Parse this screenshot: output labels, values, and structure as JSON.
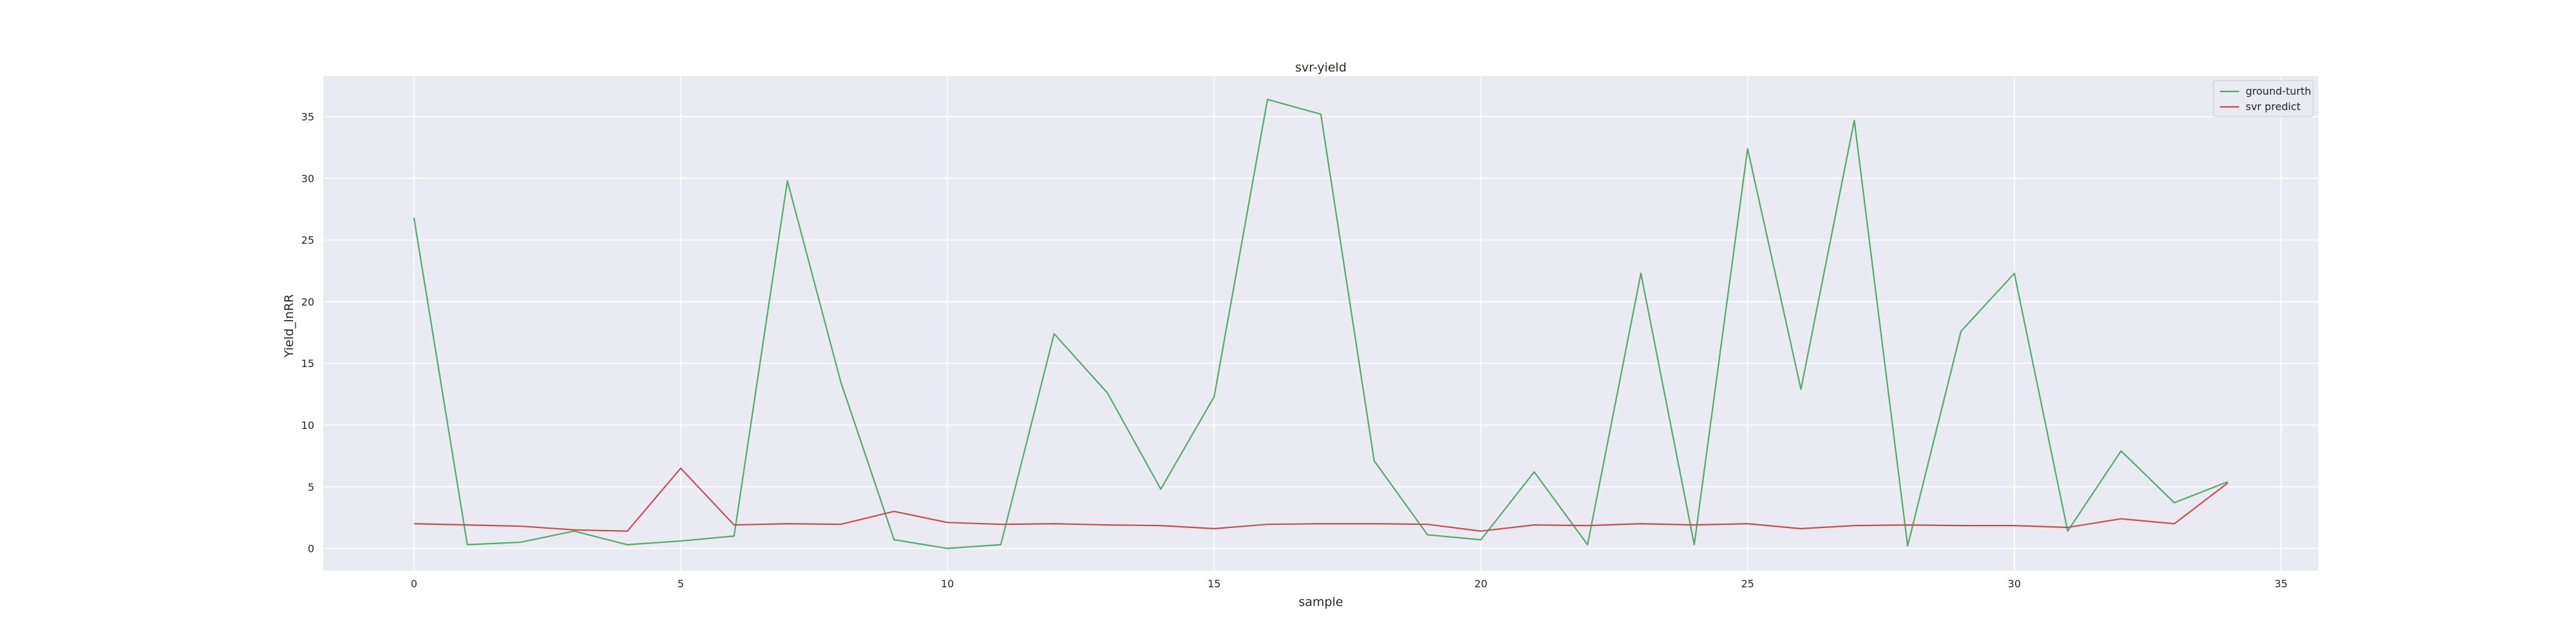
{
  "chart_data": {
    "type": "line",
    "title": "svr-yield",
    "xlabel": "sample",
    "ylabel": "Yield_lnRR",
    "xlim": [
      -1.7,
      35.7
    ],
    "ylim": [
      -1.8,
      38.3
    ],
    "xticks": [
      0,
      5,
      10,
      15,
      20,
      25,
      30,
      35
    ],
    "yticks": [
      0,
      5,
      10,
      15,
      20,
      25,
      30,
      35
    ],
    "grid": true,
    "legend_position": "top-right",
    "x": [
      0,
      1,
      2,
      3,
      4,
      5,
      6,
      7,
      8,
      9,
      10,
      11,
      12,
      13,
      14,
      15,
      16,
      17,
      18,
      19,
      20,
      21,
      22,
      23,
      24,
      25,
      26,
      27,
      28,
      29,
      30,
      31,
      32,
      33,
      34
    ],
    "series": [
      {
        "name": "ground-turth",
        "color": "#55a868",
        "values": [
          26.8,
          0.3,
          0.5,
          1.4,
          0.3,
          0.6,
          1.0,
          29.8,
          13.5,
          0.7,
          0.0,
          0.3,
          17.4,
          12.6,
          4.8,
          12.3,
          36.4,
          35.2,
          7.1,
          1.1,
          0.7,
          6.2,
          0.3,
          22.3,
          0.3,
          32.4,
          12.9,
          34.7,
          0.2,
          17.6,
          22.3,
          1.4,
          7.9,
          3.7,
          5.4
        ]
      },
      {
        "name": "svr predict",
        "color": "#c44e52",
        "values": [
          2.0,
          1.9,
          1.8,
          1.5,
          1.4,
          6.5,
          1.9,
          2.0,
          1.95,
          3.0,
          2.1,
          1.95,
          2.0,
          1.9,
          1.85,
          1.6,
          1.95,
          2.0,
          2.0,
          1.95,
          1.4,
          1.9,
          1.85,
          2.0,
          1.9,
          2.0,
          1.6,
          1.85,
          1.9,
          1.85,
          1.85,
          1.7,
          2.4,
          2.0,
          5.3
        ]
      }
    ]
  }
}
